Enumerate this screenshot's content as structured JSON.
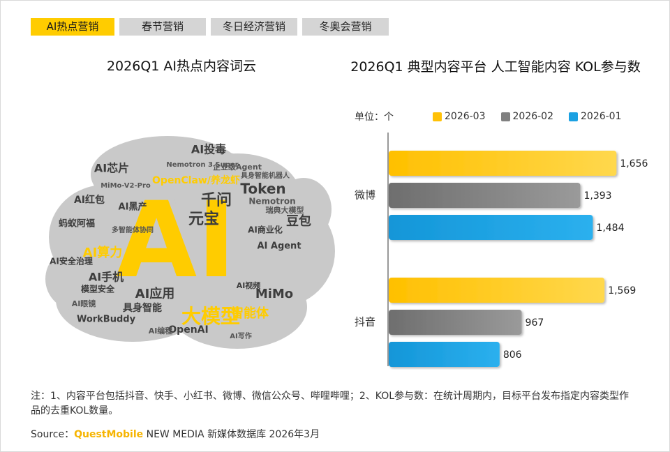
{
  "tabs": [
    {
      "label": "AI热点营销",
      "active": true
    },
    {
      "label": "春节营销",
      "active": false
    },
    {
      "label": "冬日经济营销",
      "active": false
    },
    {
      "label": "冬奥会营销",
      "active": false
    }
  ],
  "word_cloud": {
    "title": "2026Q1 AI热点内容词云",
    "words": [
      "AI",
      "大模型",
      "AI算力",
      "千问",
      "元宝",
      "AI手机",
      "AI应用",
      "MiMo",
      "智能体",
      "Token",
      "豆包",
      "OpenAI",
      "OpenClaw/养龙虾",
      "AI投毒",
      "AI芯片",
      "具身智能",
      "Nemotron",
      "AI红包",
      "AI黑产",
      "WorkBuddy",
      "蚂蚁阿福",
      "AI安全治理",
      "模型安全",
      "AI商业化",
      "AI Agent",
      "企业级Agent",
      "瑞典大模型",
      "MiMo-V2-Pro",
      "多智能体协同",
      "具身智能机器人",
      "Nemotron 3 Super",
      "AI视频",
      "AI编程",
      "AI写作",
      "AI眼镜"
    ]
  },
  "chart_data": {
    "type": "bar",
    "orientation": "horizontal",
    "title": "2026Q1 典型内容平台 人工智能内容 KOL参与数",
    "unit_label": "单位：个",
    "categories": [
      "微博",
      "抖音"
    ],
    "series": [
      {
        "name": "2026-03",
        "values": [
          1656,
          1569
        ],
        "color": "#ffc107"
      },
      {
        "name": "2026-02",
        "values": [
          1393,
          967
        ],
        "color": "#808080"
      },
      {
        "name": "2026-01",
        "values": [
          1484,
          806
        ],
        "color": "#1ba1e2"
      }
    ],
    "xlim": [
      0,
      1700
    ],
    "legend_position": "top"
  },
  "note": "注：1、内容平台包括抖音、快手、小红书、微博、微信公众号、哔哩哔哩；2、KOL参与数：在统计周期内，目标平台发布指定内容类型作品的去重KOL数量。",
  "source": {
    "prefix": "Source：",
    "brand": "QuestMobile",
    "suffix": " NEW MEDIA 新媒体数据库 2026年3月"
  }
}
